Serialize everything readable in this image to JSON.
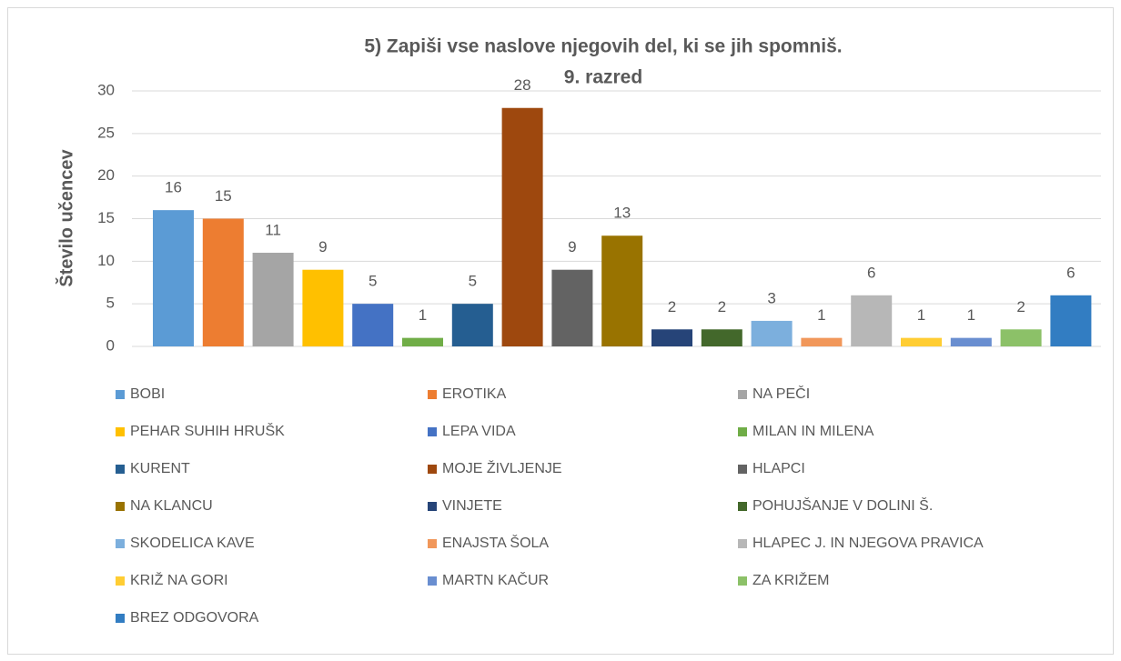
{
  "chart_data": {
    "type": "bar",
    "title": "5) Zapiši vse naslove njegovih del, ki se jih spomniš.",
    "subtitle": "9. razred",
    "y_label": "Število učencev",
    "ylim": [
      0,
      30
    ],
    "yticks": [
      0,
      5,
      10,
      15,
      20,
      25,
      30
    ],
    "grid": true,
    "legend": "bottom",
    "series": [
      {
        "name": "BOBI",
        "color": "#5b9bd5",
        "values": [
          16
        ]
      },
      {
        "name": "EROTIKA",
        "color": "#ed7d31",
        "values": [
          15
        ]
      },
      {
        "name": "NA PEČI",
        "color": "#a5a5a5",
        "values": [
          11
        ]
      },
      {
        "name": "PEHAR SUHIH HRUŠK",
        "color": "#ffc000",
        "values": [
          9
        ]
      },
      {
        "name": "LEPA VIDA",
        "color": "#4472c4",
        "values": [
          5
        ]
      },
      {
        "name": "MILAN IN MILENA",
        "color": "#70ad47",
        "values": [
          1
        ]
      },
      {
        "name": "KURENT",
        "color": "#255e91",
        "values": [
          5
        ]
      },
      {
        "name": "MOJE ŽIVLJENJE",
        "color": "#9e480e",
        "values": [
          28
        ]
      },
      {
        "name": "HLAPCI",
        "color": "#636363",
        "values": [
          9
        ]
      },
      {
        "name": "NA KLANCU",
        "color": "#997300",
        "values": [
          13
        ]
      },
      {
        "name": "VINJETE",
        "color": "#264478",
        "values": [
          2
        ]
      },
      {
        "name": "POHUJŠANJE V DOLINI Š.",
        "color": "#43682b",
        "values": [
          2
        ]
      },
      {
        "name": "SKODELICA KAVE",
        "color": "#7cafdd",
        "values": [
          3
        ]
      },
      {
        "name": "ENAJSTA ŠOLA",
        "color": "#f1975a",
        "values": [
          1
        ]
      },
      {
        "name": "HLAPEC J. IN NJEGOVA PRAVICA",
        "color": "#b7b7b7",
        "values": [
          6
        ]
      },
      {
        "name": "KRIŽ NA GORI",
        "color": "#ffcd33",
        "values": [
          1
        ]
      },
      {
        "name": "MARTN KAČUR",
        "color": "#698ed0",
        "values": [
          1
        ]
      },
      {
        "name": "ZA KRIŽEM",
        "color": "#8cc168",
        "values": [
          2
        ]
      },
      {
        "name": "BREZ ODGOVORA",
        "color": "#327dc2",
        "values": [
          6
        ]
      }
    ]
  }
}
